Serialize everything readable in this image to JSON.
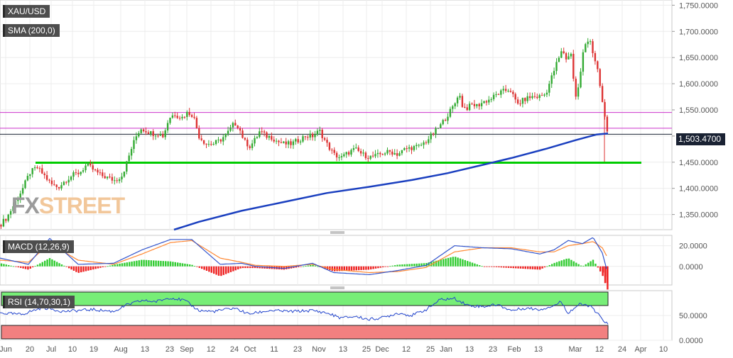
{
  "chart_data": [
    {
      "type": "candlestick",
      "symbol": "XAU/USD",
      "indicator": "SMA (200,0)",
      "last_price": "1,503.4700",
      "y_ticks": [
        "1,350.0000",
        "1,400.0000",
        "1,450.0000",
        "1,500.0000",
        "1,550.0000",
        "1,600.0000",
        "1,650.0000",
        "1,700.0000",
        "1,750.0000"
      ],
      "y_tick_values": [
        1350,
        1400,
        1450,
        1500,
        1550,
        1600,
        1650,
        1700,
        1750
      ],
      "ylim": [
        1321,
        1760
      ],
      "x_ticks": [
        "Jun",
        "20",
        "Jul",
        "10",
        "19",
        "Aug",
        "13",
        "23",
        "Sep",
        "12",
        "24",
        "Oct",
        "11",
        "23",
        "Nov",
        "13",
        "25",
        "Dec",
        "12",
        "25",
        "Jan",
        "13",
        "23",
        "Feb",
        "13",
        "Mar",
        "12",
        "24",
        "Apr",
        "10"
      ],
      "horizontal_lines": [
        {
          "value": 1545,
          "color": "#cc33cc"
        },
        {
          "value": 1515,
          "color": "#cc33cc"
        },
        {
          "value": 1449,
          "color": "#00cc00"
        }
      ],
      "ohlc_anchors": [
        [
          0,
          1330
        ],
        [
          10,
          1345
        ],
        [
          22,
          1375
        ],
        [
          32,
          1400
        ],
        [
          42,
          1430
        ],
        [
          52,
          1440
        ],
        [
          62,
          1425
        ],
        [
          72,
          1408
        ],
        [
          82,
          1402
        ],
        [
          92,
          1415
        ],
        [
          102,
          1425
        ],
        [
          112,
          1430
        ],
        [
          122,
          1445
        ],
        [
          132,
          1435
        ],
        [
          142,
          1425
        ],
        [
          152,
          1420
        ],
        [
          162,
          1415
        ],
        [
          172,
          1425
        ],
        [
          180,
          1455
        ],
        [
          186,
          1480
        ],
        [
          192,
          1500
        ],
        [
          198,
          1515
        ],
        [
          206,
          1510
        ],
        [
          214,
          1505
        ],
        [
          222,
          1505
        ],
        [
          230,
          1500
        ],
        [
          238,
          1535
        ],
        [
          246,
          1542
        ],
        [
          256,
          1535
        ],
        [
          264,
          1545
        ],
        [
          272,
          1540
        ],
        [
          280,
          1500
        ],
        [
          290,
          1485
        ],
        [
          300,
          1485
        ],
        [
          310,
          1492
        ],
        [
          320,
          1505
        ],
        [
          330,
          1525
        ],
        [
          336,
          1518
        ],
        [
          344,
          1490
        ],
        [
          352,
          1480
        ],
        [
          360,
          1495
        ],
        [
          366,
          1510
        ],
        [
          374,
          1500
        ],
        [
          382,
          1498
        ],
        [
          390,
          1490
        ],
        [
          400,
          1485
        ],
        [
          410,
          1485
        ],
        [
          420,
          1492
        ],
        [
          430,
          1500
        ],
        [
          440,
          1500
        ],
        [
          450,
          1510
        ],
        [
          460,
          1485
        ],
        [
          470,
          1465
        ],
        [
          480,
          1458
        ],
        [
          490,
          1468
        ],
        [
          500,
          1475
        ],
        [
          510,
          1465
        ],
        [
          520,
          1460
        ],
        [
          530,
          1462
        ],
        [
          540,
          1468
        ],
        [
          550,
          1470
        ],
        [
          560,
          1465
        ],
        [
          570,
          1475
        ],
        [
          580,
          1478
        ],
        [
          590,
          1480
        ],
        [
          600,
          1490
        ],
        [
          610,
          1505
        ],
        [
          620,
          1520
        ],
        [
          630,
          1540
        ],
        [
          640,
          1560
        ],
        [
          646,
          1585
        ],
        [
          650,
          1560
        ],
        [
          656,
          1552
        ],
        [
          664,
          1560
        ],
        [
          672,
          1558
        ],
        [
          680,
          1565
        ],
        [
          690,
          1570
        ],
        [
          700,
          1580
        ],
        [
          708,
          1585
        ],
        [
          718,
          1590
        ],
        [
          728,
          1560
        ],
        [
          738,
          1570
        ],
        [
          748,
          1575
        ],
        [
          758,
          1575
        ],
        [
          768,
          1580
        ],
        [
          776,
          1610
        ],
        [
          784,
          1640
        ],
        [
          792,
          1665
        ],
        [
          798,
          1645
        ],
        [
          804,
          1660
        ],
        [
          810,
          1570
        ],
        [
          816,
          1605
        ],
        [
          822,
          1670
        ],
        [
          830,
          1690
        ],
        [
          836,
          1650
        ],
        [
          842,
          1620
        ],
        [
          848,
          1565
        ],
        [
          852,
          1530
        ],
        [
          856,
          1503
        ]
      ],
      "sma_200": [
        [
          245,
          1321
        ],
        [
          280,
          1336
        ],
        [
          340,
          1357
        ],
        [
          400,
          1374
        ],
        [
          460,
          1391
        ],
        [
          520,
          1403
        ],
        [
          580,
          1416
        ],
        [
          630,
          1429
        ],
        [
          680,
          1445
        ],
        [
          720,
          1458
        ],
        [
          770,
          1476
        ],
        [
          810,
          1492
        ],
        [
          840,
          1503
        ],
        [
          856,
          1505
        ]
      ],
      "grid": true
    },
    {
      "type": "line",
      "indicator": "MACD (12,26,9)",
      "y_ticks": [
        "20.0000",
        "0.0000"
      ],
      "y_tick_values": [
        20,
        0
      ],
      "ylim": [
        -18,
        30
      ],
      "series": [
        {
          "role": "macd",
          "color": "#3355cc"
        },
        {
          "role": "signal",
          "color": "#ff8833"
        },
        {
          "role": "histogram",
          "colors": [
            "#33cc33",
            "#ee2222"
          ]
        }
      ],
      "macd_anchors": [
        [
          0,
          8
        ],
        [
          40,
          2
        ],
        [
          70,
          27
        ],
        [
          110,
          2
        ],
        [
          160,
          3
        ],
        [
          200,
          16
        ],
        [
          240,
          26
        ],
        [
          270,
          26
        ],
        [
          310,
          2
        ],
        [
          340,
          3
        ],
        [
          360,
          0
        ],
        [
          400,
          -2
        ],
        [
          440,
          3
        ],
        [
          470,
          -6
        ],
        [
          520,
          -8
        ],
        [
          560,
          -4
        ],
        [
          600,
          1
        ],
        [
          640,
          20
        ],
        [
          680,
          18
        ],
        [
          720,
          17
        ],
        [
          760,
          12
        ],
        [
          780,
          16
        ],
        [
          800,
          25
        ],
        [
          820,
          22
        ],
        [
          835,
          28
        ],
        [
          848,
          13
        ],
        [
          855,
          -5
        ]
      ],
      "signal_anchors": [
        [
          0,
          6
        ],
        [
          40,
          4
        ],
        [
          70,
          22
        ],
        [
          110,
          6
        ],
        [
          160,
          2
        ],
        [
          200,
          12
        ],
        [
          240,
          23
        ],
        [
          270,
          25
        ],
        [
          310,
          8
        ],
        [
          340,
          4
        ],
        [
          360,
          1
        ],
        [
          400,
          0
        ],
        [
          440,
          2
        ],
        [
          470,
          -3
        ],
        [
          520,
          -6
        ],
        [
          560,
          -5
        ],
        [
          600,
          -1
        ],
        [
          640,
          14
        ],
        [
          680,
          18
        ],
        [
          720,
          18
        ],
        [
          760,
          14
        ],
        [
          780,
          14
        ],
        [
          800,
          20
        ],
        [
          820,
          22
        ],
        [
          835,
          24
        ],
        [
          848,
          18
        ],
        [
          855,
          9
        ]
      ],
      "grid": true
    },
    {
      "type": "line",
      "indicator": "RSI (14,70,30,1)",
      "y_ticks": [
        "50.0000",
        "0.0000"
      ],
      "y_tick_values": [
        50,
        0
      ],
      "ylim": [
        0,
        100
      ],
      "overbought": 70,
      "oversold": 30,
      "rsi_anchors": [
        [
          0,
          55
        ],
        [
          30,
          52
        ],
        [
          60,
          66
        ],
        [
          90,
          58
        ],
        [
          130,
          62
        ],
        [
          160,
          58
        ],
        [
          180,
          72
        ],
        [
          200,
          80
        ],
        [
          220,
          78
        ],
        [
          240,
          86
        ],
        [
          260,
          80
        ],
        [
          280,
          60
        ],
        [
          300,
          58
        ],
        [
          330,
          65
        ],
        [
          350,
          53
        ],
        [
          380,
          60
        ],
        [
          410,
          58
        ],
        [
          440,
          60
        ],
        [
          460,
          55
        ],
        [
          480,
          45
        ],
        [
          500,
          48
        ],
        [
          520,
          42
        ],
        [
          540,
          46
        ],
        [
          560,
          55
        ],
        [
          580,
          50
        ],
        [
          600,
          62
        ],
        [
          620,
          82
        ],
        [
          640,
          84
        ],
        [
          660,
          70
        ],
        [
          680,
          68
        ],
        [
          700,
          72
        ],
        [
          720,
          60
        ],
        [
          740,
          65
        ],
        [
          760,
          62
        ],
        [
          780,
          70
        ],
        [
          790,
          78
        ],
        [
          800,
          55
        ],
        [
          815,
          72
        ],
        [
          830,
          70
        ],
        [
          840,
          55
        ],
        [
          850,
          40
        ],
        [
          856,
          32
        ]
      ],
      "grid": true
    }
  ]
}
